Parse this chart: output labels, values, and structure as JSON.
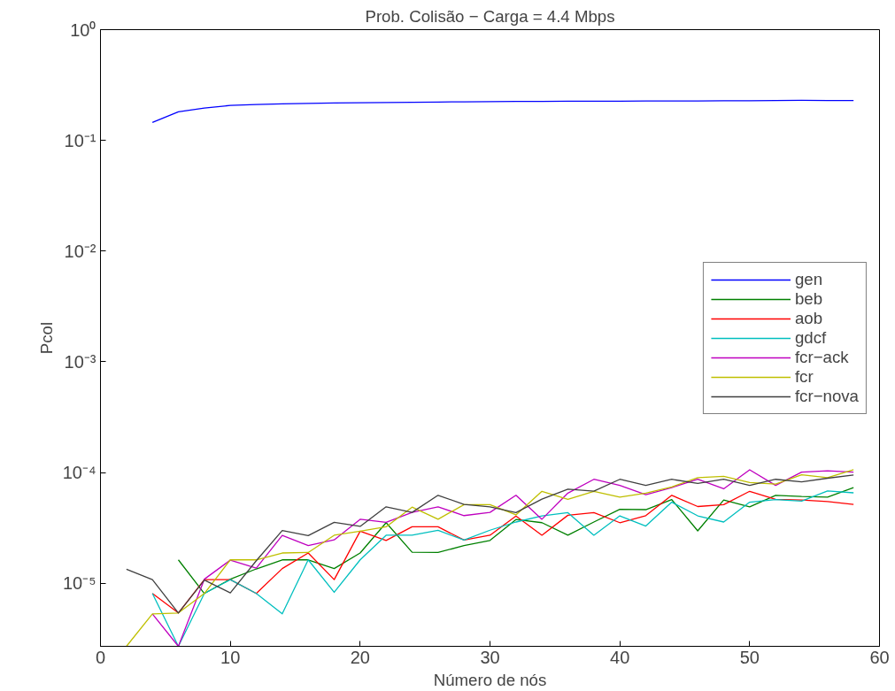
{
  "chart_data": {
    "type": "line",
    "title": "Prob. Colisão − Carga = 4.4 Mbps",
    "xlabel": "Número de nós",
    "ylabel": "Pcol",
    "log": "y",
    "xlim": [
      0,
      60
    ],
    "xticks": [
      0,
      10,
      20,
      30,
      40,
      50,
      60
    ],
    "ylim": [
      2.7e-06,
      1
    ],
    "yticks": [
      {
        "value": 1e-05,
        "label": "10⁻⁵"
      },
      {
        "value": 0.0001,
        "label": "10⁻⁴"
      },
      {
        "value": 0.001,
        "label": "10⁻³"
      },
      {
        "value": 0.01,
        "label": "10⁻²"
      },
      {
        "value": 0.1,
        "label": "10⁻¹"
      },
      {
        "value": 1,
        "label": "10⁰"
      }
    ],
    "grid": false,
    "legend": "right",
    "line_style": "solid",
    "marker": "none",
    "x": [
      2,
      4,
      6,
      8,
      10,
      12,
      14,
      16,
      18,
      20,
      22,
      24,
      26,
      28,
      30,
      32,
      34,
      36,
      38,
      40,
      42,
      44,
      46,
      48,
      50,
      52,
      54,
      56,
      58
    ],
    "series": [
      {
        "name": "gen",
        "color": "#0000ff",
        "values": [
          null,
          0.145,
          0.181,
          0.196,
          0.207,
          0.211,
          0.214,
          0.216,
          0.218,
          0.219,
          0.22,
          0.221,
          0.222,
          0.223,
          0.224,
          0.225,
          0.225,
          0.226,
          0.226,
          0.226,
          0.227,
          0.227,
          0.227,
          0.228,
          0.228,
          0.229,
          0.23,
          0.229,
          0.229
        ]
      },
      {
        "name": "beb",
        "color": "#008000",
        "values": [
          null,
          null,
          1.63e-05,
          8.1e-06,
          1.09e-05,
          1.35e-05,
          1.63e-05,
          1.63e-05,
          1.36e-05,
          1.88e-05,
          3.53e-05,
          1.91e-05,
          1.9e-05,
          2.19e-05,
          2.44e-05,
          3.77e-05,
          3.53e-05,
          2.72e-05,
          3.58e-05,
          4.67e-05,
          4.63e-05,
          5.7e-05,
          2.98e-05,
          5.66e-05,
          4.91e-05,
          6.24e-05,
          6.08e-05,
          6e-05,
          7.33e-05
        ]
      },
      {
        "name": "aob",
        "color": "#ff0000",
        "values": [
          null,
          8.1e-06,
          5.4e-06,
          1.08e-05,
          1.08e-05,
          8.1e-06,
          1.36e-05,
          1.88e-05,
          1.08e-05,
          2.96e-05,
          2.44e-05,
          3.24e-05,
          3.24e-05,
          2.46e-05,
          2.72e-05,
          4.05e-05,
          2.72e-05,
          4.12e-05,
          4.35e-05,
          3.53e-05,
          4.09e-05,
          6.24e-05,
          4.94e-05,
          5.14e-05,
          6.78e-05,
          5.74e-05,
          5.66e-05,
          5.48e-05,
          5.17e-05
        ]
      },
      {
        "name": "gdcf",
        "color": "#00bfbf",
        "values": [
          null,
          8.1e-06,
          2.7e-06,
          8.1e-06,
          1.08e-05,
          8.1e-06,
          5.3e-06,
          1.63e-05,
          8.3e-06,
          1.63e-05,
          2.72e-05,
          2.72e-05,
          3.01e-05,
          2.46e-05,
          3.02e-05,
          3.58e-05,
          4.07e-05,
          4.35e-05,
          2.72e-05,
          4.07e-05,
          3.29e-05,
          5.41e-05,
          4.07e-05,
          3.58e-05,
          5.41e-05,
          5.7e-05,
          5.52e-05,
          6.82e-05,
          6.57e-05
        ]
      },
      {
        "name": "fcr−ack",
        "color": "#bf00bf",
        "values": [
          null,
          5.3e-06,
          2.7e-06,
          1.09e-05,
          1.62e-05,
          1.37e-05,
          2.71e-05,
          2.19e-05,
          2.47e-05,
          3.79e-05,
          3.56e-05,
          4.37e-05,
          4.91e-05,
          4.09e-05,
          4.37e-05,
          6.24e-05,
          3.79e-05,
          6.53e-05,
          8.7e-05,
          7.67e-05,
          6.32e-05,
          7.33e-05,
          8.7e-05,
          7.14e-05,
          0.000106,
          7.67e-05,
          0.000101,
          0.000104,
          0.000101
        ]
      },
      {
        "name": "fcr",
        "color": "#bfbf00",
        "values": [
          2.7e-06,
          5.3e-06,
          5.4e-06,
          8.1e-06,
          1.63e-05,
          1.63e-05,
          1.88e-05,
          1.9e-05,
          2.72e-05,
          2.96e-05,
          3.24e-05,
          4.88e-05,
          3.79e-05,
          5.14e-05,
          5.14e-05,
          4.15e-05,
          6.78e-05,
          5.74e-05,
          6.78e-05,
          6e-05,
          6.53e-05,
          7.43e-05,
          9e-05,
          9.25e-05,
          8.13e-05,
          7.87e-05,
          9.56e-05,
          9e-05,
          0.000106
        ]
      },
      {
        "name": "fcr−nova",
        "color": "#404040",
        "values": [
          1.34e-05,
          1.08e-05,
          5.4e-06,
          1.07e-05,
          8.2e-06,
          1.6e-05,
          3e-05,
          2.7e-05,
          3.56e-05,
          3.27e-05,
          4.91e-05,
          4.37e-05,
          6.24e-05,
          5.17e-05,
          4.91e-05,
          4.35e-05,
          5.77e-05,
          7.1e-05,
          6.8e-05,
          8.7e-05,
          7.67e-05,
          8.7e-05,
          7.98e-05,
          8.7e-05,
          7.67e-05,
          8.7e-05,
          8.24e-05,
          8.9e-05,
          9.5e-05
        ]
      }
    ]
  }
}
